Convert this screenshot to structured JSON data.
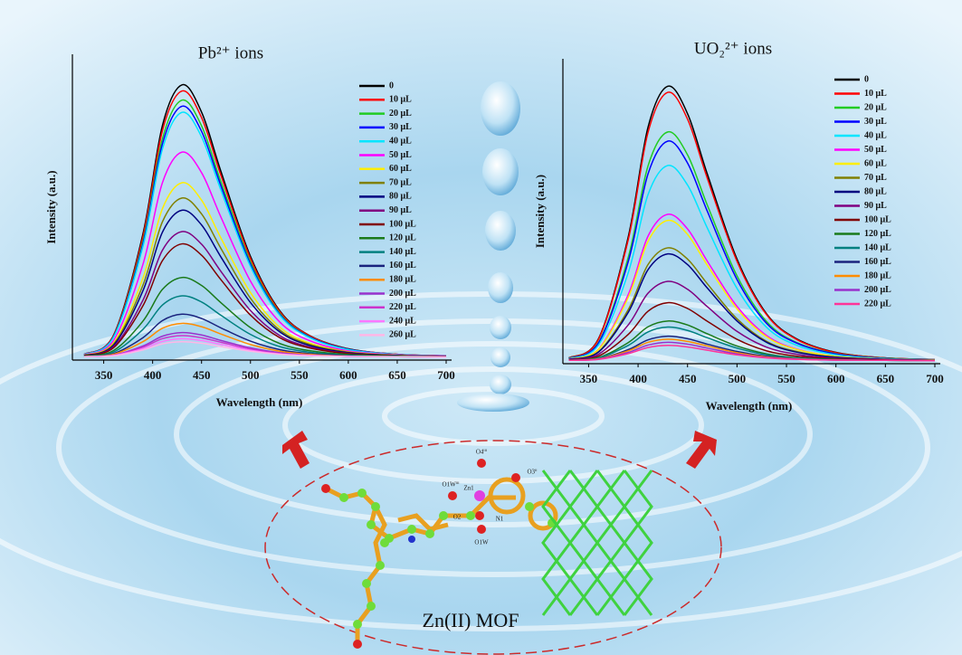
{
  "chart_data": [
    {
      "type": "line",
      "title": "Pb²⁺ ions",
      "x_label": "Wavelength (nm)",
      "y_label": "Intensity (a.u.)",
      "x": [
        330,
        360,
        390,
        410,
        430,
        450,
        470,
        500,
        530,
        560,
        600,
        650,
        700
      ],
      "xlim": [
        318,
        700
      ],
      "xticks": [
        350,
        400,
        450,
        500,
        550,
        600,
        650,
        700
      ],
      "ylim": [
        0,
        100
      ],
      "legend": "upper right",
      "series": [
        {
          "name": "0",
          "color": "#000000",
          "values": [
            1.9,
            8.1,
            41.1,
            76.7,
            90,
            81.1,
            61.5,
            33.9,
            16.1,
            8.1,
            3.7,
            1.9,
            1.4
          ]
        },
        {
          "name": "10 μL",
          "color": "#ff0000",
          "values": [
            1.9,
            8,
            40.2,
            75,
            88,
            79.3,
            60.2,
            33.2,
            15.8,
            8,
            3.6,
            1.9,
            1.3
          ]
        },
        {
          "name": "20 μL",
          "color": "#22cc22",
          "values": [
            1.8,
            7.7,
            38.8,
            72.4,
            85,
            76.6,
            58.1,
            32.1,
            15.3,
            7.7,
            3.5,
            1.8,
            1.3
          ]
        },
        {
          "name": "30 μL",
          "color": "#0000ff",
          "values": [
            1.8,
            7.6,
            37.9,
            70.7,
            83,
            74.8,
            56.8,
            31.3,
            14.9,
            7.6,
            3.5,
            1.8,
            1.3
          ]
        },
        {
          "name": "40 μL",
          "color": "#00e5ff",
          "values": [
            1.8,
            7.4,
            37,
            69,
            81,
            73,
            55.4,
            30.6,
            14.6,
            7.4,
            3.4,
            1.8,
            1.3
          ]
        },
        {
          "name": "50 μL",
          "color": "#ff00ff",
          "values": [
            1.7,
            6.4,
            31.2,
            58,
            68,
            61.3,
            46.6,
            25.8,
            12.4,
            6.4,
            3,
            1.7,
            1.3
          ]
        },
        {
          "name": "60 μL",
          "color": "#ffee00",
          "values": [
            1.6,
            5.6,
            26.7,
            49.5,
            58,
            52.3,
            39.8,
            22.1,
            10.7,
            5.6,
            2.7,
            1.6,
            1.2
          ]
        },
        {
          "name": "70 μL",
          "color": "#808000",
          "values": [
            1.5,
            5.2,
            24.4,
            45.2,
            53,
            47.8,
            36.4,
            20.2,
            9.8,
            5.2,
            2.6,
            1.5,
            1.2
          ]
        },
        {
          "name": "80 μL",
          "color": "#000080",
          "values": [
            1.5,
            4.8,
            22.6,
            41.8,
            49,
            44.2,
            33.6,
            18.8,
            9.2,
            4.8,
            2.4,
            1.5,
            1.2
          ]
        },
        {
          "name": "90 μL",
          "color": "#800080",
          "values": [
            1.4,
            4.3,
            19.5,
            35.9,
            42,
            37.9,
            28.9,
            16.2,
            8,
            4.3,
            2.2,
            1.4,
            1.2
          ]
        },
        {
          "name": "100 μL",
          "color": "#800000",
          "values": [
            1.4,
            4,
            17.7,
            32.5,
            38,
            34.3,
            26.2,
            14.7,
            7.3,
            4,
            2.1,
            1.4,
            1.2
          ]
        },
        {
          "name": "120 μL",
          "color": "#1a7a1a",
          "values": [
            1.3,
            3.1,
            12.7,
            23.1,
            27,
            24.4,
            18.7,
            10.6,
            5.4,
            3.1,
            1.8,
            1.3,
            1.1
          ]
        },
        {
          "name": "140 μL",
          "color": "#008080",
          "values": [
            1.2,
            2.6,
            10,
            18,
            21,
            19,
            14.6,
            8.4,
            4.4,
            2.6,
            1.6,
            1.2,
            1.1
          ]
        },
        {
          "name": "160 μL",
          "color": "#1a237e",
          "values": [
            1.1,
            2.1,
            7.3,
            12.9,
            15,
            13.6,
            10.5,
            6.2,
            3.4,
            2.1,
            1.4,
            1.1,
            1.1
          ]
        },
        {
          "name": "180 μL",
          "color": "#ff8c00",
          "values": [
            1.1,
            1.9,
            6,
            10.4,
            12,
            10.9,
            8.5,
            5.1,
            2.9,
            1.9,
            1.3,
            1.1,
            1
          ]
        },
        {
          "name": "200 μL",
          "color": "#9932cc",
          "values": [
            1.1,
            1.6,
            4.6,
            7.8,
            9,
            8.2,
            6.4,
            4,
            2.4,
            1.6,
            1.2,
            1.1,
            1
          ]
        },
        {
          "name": "220 μL",
          "color": "#cc33cc",
          "values": [
            1.1,
            1.6,
            4.2,
            7,
            8,
            7.3,
            5.8,
            3.6,
            2.2,
            1.6,
            1.2,
            1.1,
            1
          ]
        },
        {
          "name": "240 μL",
          "color": "#ff77ff",
          "values": [
            1.1,
            1.5,
            3.7,
            6.1,
            7,
            6.4,
            5.1,
            3.2,
            2,
            1.5,
            1.2,
            1.1,
            1
          ]
        },
        {
          "name": "260 μL",
          "color": "#ffb6e6",
          "values": [
            1.1,
            1.4,
            3.3,
            5.3,
            6,
            5.5,
            4.4,
            2.9,
            1.9,
            1.4,
            1.2,
            1.1,
            1
          ]
        }
      ]
    },
    {
      "type": "line",
      "title": "UO₂²⁺ ions",
      "x_label": "Wavelength (nm)",
      "y_label": "Intensity (a.u.)",
      "x": [
        330,
        360,
        390,
        410,
        430,
        450,
        470,
        500,
        530,
        560,
        600,
        650,
        700
      ],
      "xlim": [
        324,
        700
      ],
      "xticks": [
        350,
        400,
        450,
        500,
        550,
        600,
        650,
        700
      ],
      "ylim": [
        0,
        100
      ],
      "legend": "upper right",
      "series": [
        {
          "name": "0",
          "color": "#000000",
          "values": [
            1.9,
            8.2,
            41.5,
            77.5,
            91,
            82,
            62.2,
            34.3,
            16.3,
            8.2,
            3.7,
            1.9,
            1.4
          ]
        },
        {
          "name": "10 μL",
          "color": "#ff0000",
          "values": [
            1.9,
            8,
            40.6,
            75.8,
            89,
            80.2,
            60.8,
            33.6,
            16,
            8,
            3.6,
            1.9,
            1.4
          ]
        },
        {
          "name": "20 μL",
          "color": "#22cc22",
          "values": [
            1.8,
            7,
            34.8,
            64.8,
            76,
            68.5,
            52,
            28.8,
            13.8,
            7,
            3.3,
            1.8,
            1.3
          ]
        },
        {
          "name": "30 μL",
          "color": "#0000ff",
          "values": [
            1.7,
            6.8,
            33.4,
            62.2,
            73,
            65.8,
            50,
            27.6,
            13.2,
            6.8,
            3.2,
            1.7,
            1.3
          ]
        },
        {
          "name": "40 μL",
          "color": "#00e5ff",
          "values": [
            1.6,
            6.1,
            29.8,
            55.4,
            65,
            58.6,
            44.5,
            24.7,
            11.9,
            6.1,
            2.9,
            1.6,
            1.3
          ]
        },
        {
          "name": "50 μL",
          "color": "#ff00ff",
          "values": [
            1.5,
            4.8,
            22.6,
            41.8,
            49,
            44.2,
            33.6,
            18.8,
            9.2,
            4.8,
            2.4,
            1.5,
            1.2
          ]
        },
        {
          "name": "60 μL",
          "color": "#ffee00",
          "values": [
            1.5,
            4.7,
            21.7,
            40.1,
            47,
            42.4,
            32.3,
            18,
            8.8,
            4.7,
            2.4,
            1.5,
            1.2
          ]
        },
        {
          "name": "70 μL",
          "color": "#808000",
          "values": [
            1.4,
            4,
            17.7,
            32.5,
            38,
            34.3,
            26.2,
            14.7,
            7.3,
            4,
            2.1,
            1.4,
            1.2
          ]
        },
        {
          "name": "80 μL",
          "color": "#000080",
          "values": [
            1.4,
            3.8,
            16.8,
            30.8,
            36,
            32.5,
            24.8,
            14,
            7,
            3.8,
            2.1,
            1.4,
            1.1
          ]
        },
        {
          "name": "90 μL",
          "color": "#800080",
          "values": [
            1.3,
            3.1,
            12.7,
            23.1,
            27,
            24.4,
            18.7,
            10.6,
            5.4,
            3.1,
            1.8,
            1.3,
            1.1
          ]
        },
        {
          "name": "100 μL",
          "color": "#800000",
          "values": [
            1.2,
            2.5,
            9.6,
            17.2,
            20,
            18.1,
            13.9,
            8,
            4.2,
            2.5,
            1.6,
            1.2,
            1.1
          ]
        },
        {
          "name": "120 μL",
          "color": "#1a7a1a",
          "values": [
            1.1,
            2,
            6.9,
            12.1,
            14,
            12.7,
            9.8,
            5.8,
            3.2,
            2,
            1.4,
            1.1,
            1.1
          ]
        },
        {
          "name": "140 μL",
          "color": "#008080",
          "values": [
            1.1,
            1.9,
            6,
            10.4,
            12,
            10.9,
            8.5,
            5.1,
            2.9,
            1.9,
            1.3,
            1.1,
            1
          ]
        },
        {
          "name": "160 μL",
          "color": "#1a237e",
          "values": [
            1.1,
            1.6,
            4.6,
            7.8,
            9,
            8.2,
            6.4,
            4,
            2.4,
            1.6,
            1.2,
            1.1,
            1
          ]
        },
        {
          "name": "180 μL",
          "color": "#ff8c00",
          "values": [
            1.1,
            1.6,
            4.2,
            7,
            8,
            7.3,
            5.8,
            3.6,
            2.2,
            1.6,
            1.2,
            1.1,
            1
          ]
        },
        {
          "name": "200 μL",
          "color": "#9932cc",
          "values": [
            1.1,
            1.5,
            3.7,
            6.1,
            7,
            6.4,
            5.1,
            3.2,
            2,
            1.5,
            1.2,
            1.1,
            1
          ]
        },
        {
          "name": "220 μL",
          "color": "#ff3399",
          "values": [
            1.1,
            1.4,
            3.3,
            5.3,
            6,
            5.5,
            4.4,
            2.9,
            1.9,
            1.4,
            1.2,
            1.1,
            1
          ]
        }
      ]
    }
  ],
  "mof": {
    "label": "Zn(II) MOF",
    "atom_labels": [
      "O4ⁱⁱⁱ",
      "O1Wⁱⁱⁱ",
      "Zn1",
      "O3ⁱⁱ",
      "O2",
      "N1",
      "O1W"
    ]
  }
}
